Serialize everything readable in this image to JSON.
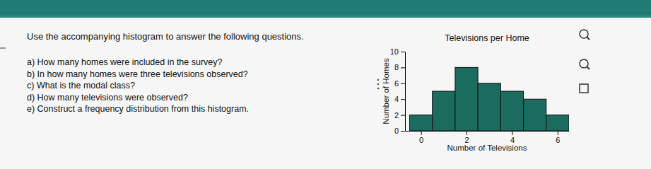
{
  "instruction": "Use the accompanying histogram to answer the following questions.",
  "questions": [
    "a) How many homes were included in the survey?",
    "b) In how many homes were three televisions observed?",
    "c) What is the modal class?",
    "d) How many televisions were observed?",
    "e) Construct a frequency distribution from this histogram."
  ],
  "chart_data": {
    "type": "histogram",
    "title": "Televisions per Home",
    "x_label": "Number of Televisions",
    "y_label": "Number of Homes",
    "bins": [
      -0.5,
      0.5,
      1.5,
      2.5,
      3.5,
      4.5,
      5.5,
      6.5
    ],
    "values": [
      2,
      5,
      8,
      6,
      5,
      4,
      2
    ],
    "color": "#1b6b5f",
    "xlim": [
      -0.7,
      6.5
    ],
    "xticks": [
      0,
      2,
      4,
      6
    ],
    "ylim": [
      0,
      10
    ],
    "yticks": [
      0,
      2,
      4,
      6,
      8,
      10
    ],
    "grid": false
  }
}
